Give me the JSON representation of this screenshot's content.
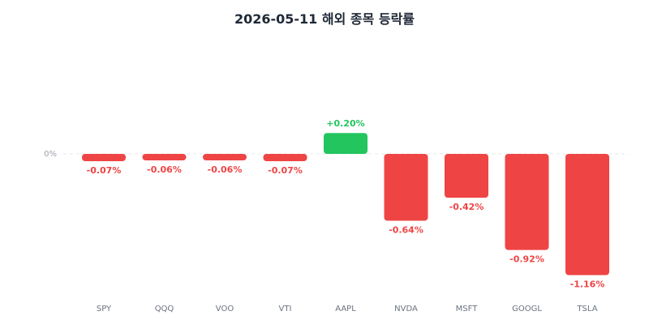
{
  "chart_data": {
    "type": "bar",
    "title": "2026-05-11 해외 종목 등락률",
    "categories": [
      "SPY",
      "QQQ",
      "VOO",
      "VTI",
      "AAPL",
      "NVDA",
      "MSFT",
      "GOOGL",
      "TSLA"
    ],
    "values": [
      -0.07,
      -0.06,
      -0.06,
      -0.07,
      0.2,
      -0.64,
      -0.42,
      -0.92,
      -1.16
    ],
    "value_labels": [
      "-0.07%",
      "-0.06%",
      "-0.06%",
      "-0.07%",
      "+0.20%",
      "-0.64%",
      "-0.42%",
      "-0.92%",
      "-1.16%"
    ],
    "zero_label": "0%",
    "ylim": [
      -1.16,
      0.2
    ],
    "grid": false,
    "colors": {
      "positive": "#22c55e",
      "negative": "#ef4444",
      "baseline": "#e5e7eb"
    }
  }
}
